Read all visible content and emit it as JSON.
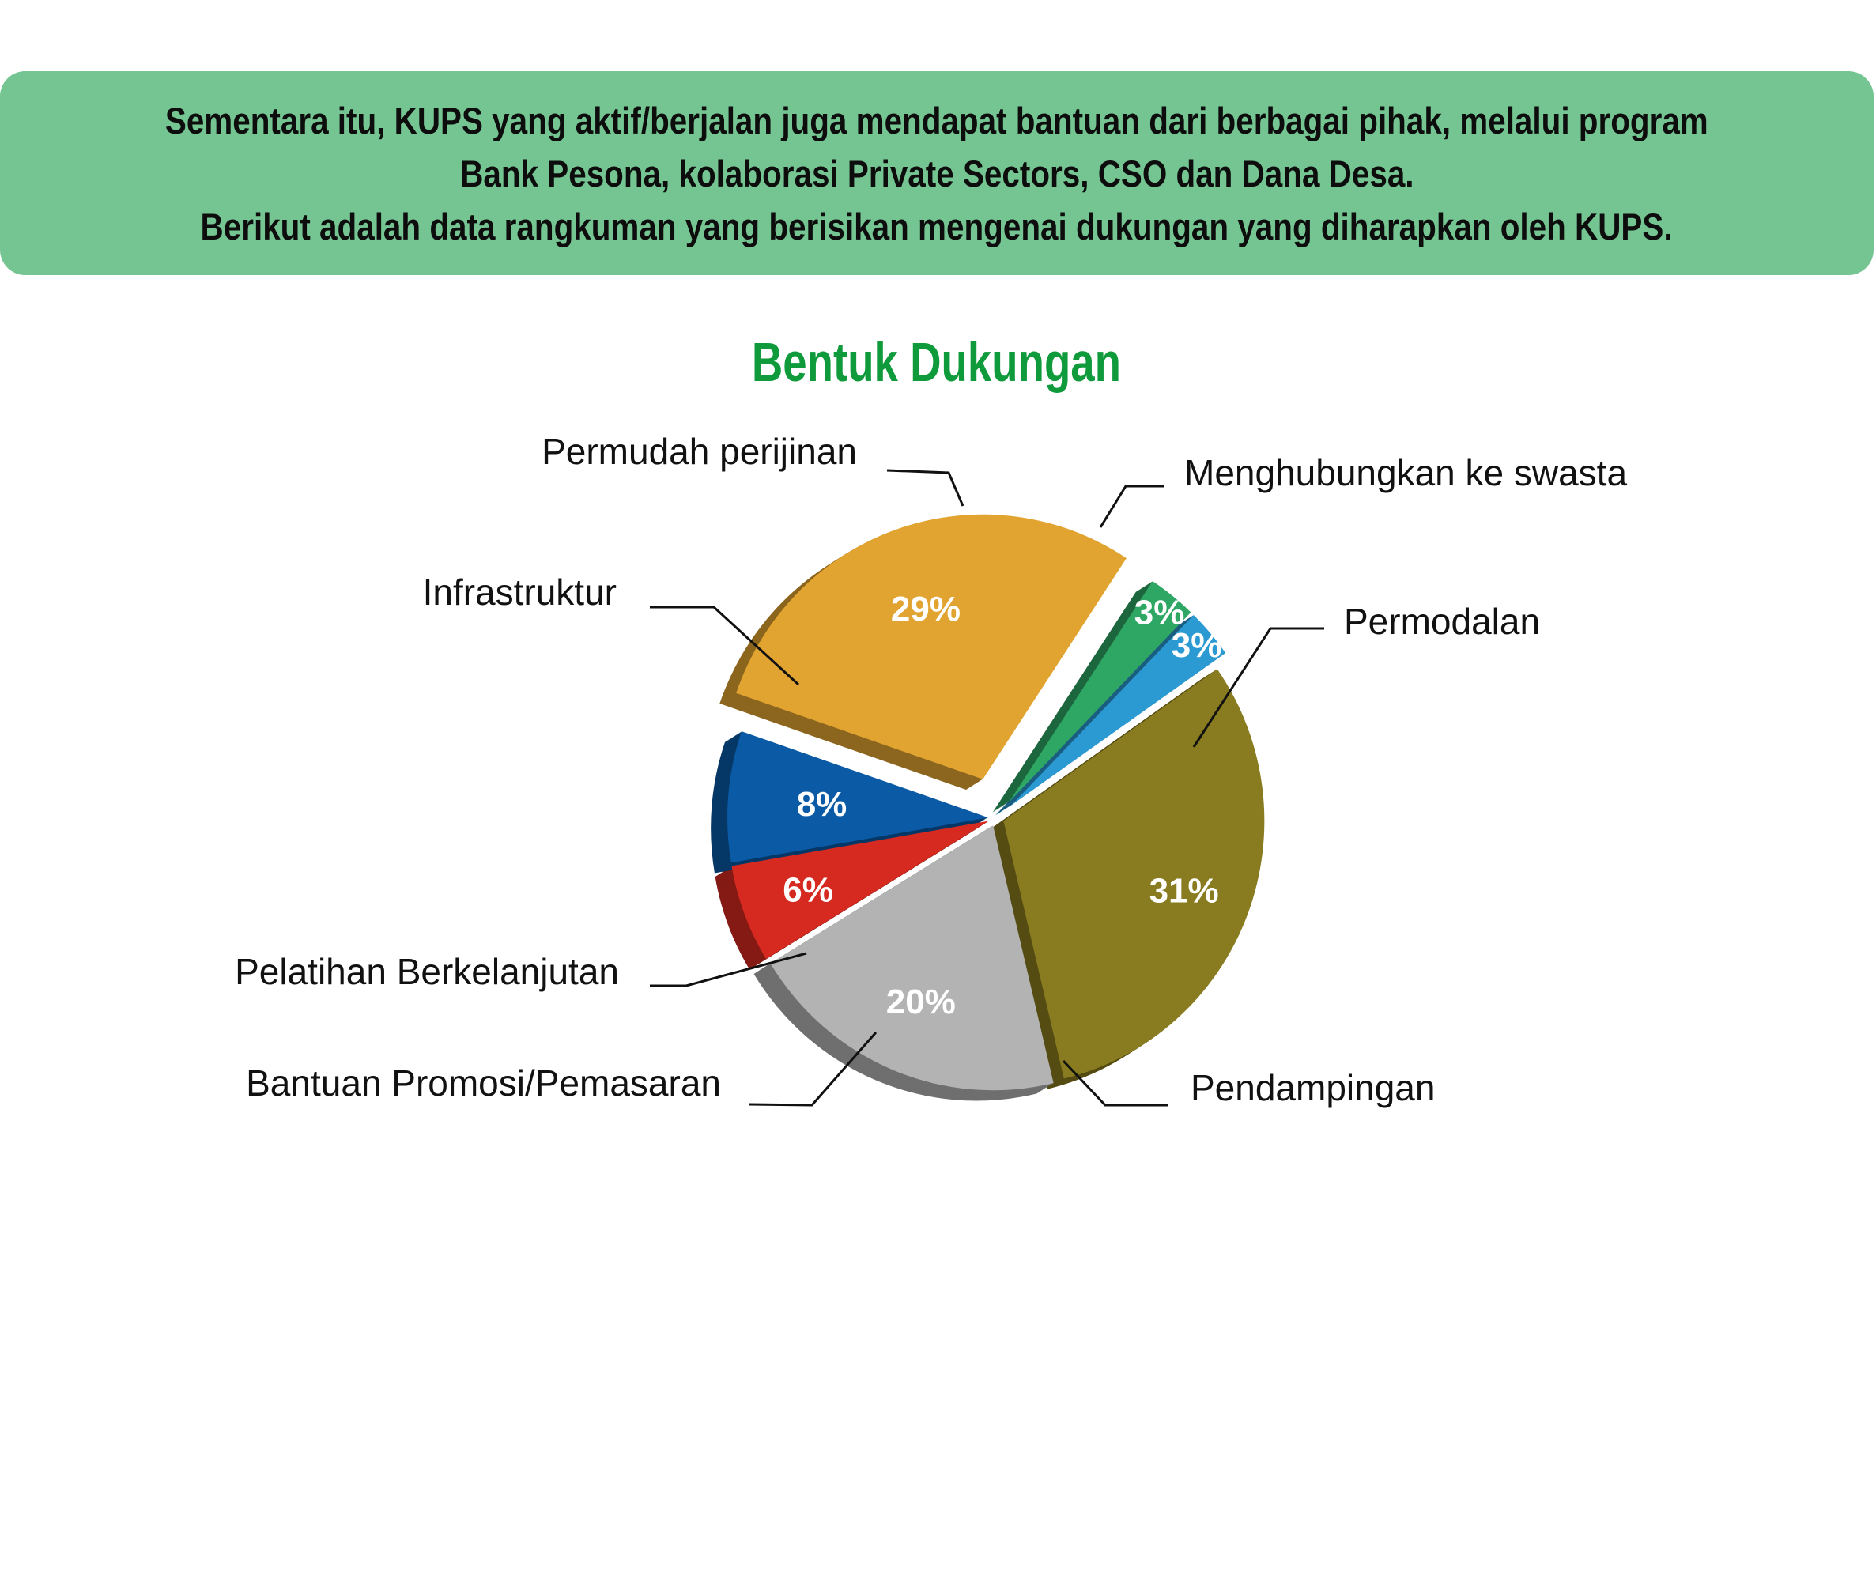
{
  "banner": {
    "line1": "Sementara itu, KUPS yang aktif/berjalan juga mendapat bantuan dari berbagai pihak, melalui program",
    "line2": "Bank Pesona, kolaborasi Private Sectors, CSO dan Dana Desa.",
    "line3": "Berikut adalah data rangkuman yang berisikan mengenai dukungan yang diharapkan oleh KUPS."
  },
  "chart_data": {
    "type": "pie",
    "title": "Bentuk Dukungan",
    "legend": "none",
    "slices": [
      {
        "label": "Permodalan",
        "value": 31,
        "value_label": "31%",
        "color": "#897b1f"
      },
      {
        "label": "Pendampingan",
        "value": 20,
        "value_label": "20%",
        "color": "#b3b3b3"
      },
      {
        "label": "Bantuan Promosi/Pemasaran",
        "value": 6,
        "value_label": "6%",
        "color": "#d62a20"
      },
      {
        "label": "Pelatihan Berkelanjutan",
        "value": 8,
        "value_label": "8%",
        "color": "#0a5aa6"
      },
      {
        "label": "Infrastruktur",
        "value": 29,
        "value_label": "29%",
        "color": "#e2a431"
      },
      {
        "label": "Permudah perijinan",
        "value": 3,
        "value_label": "3%",
        "color": "#2ea664"
      },
      {
        "label": "Menghubungkan ke swasta",
        "value": 3,
        "value_label": "3%",
        "color": "#2b9ad2"
      }
    ]
  }
}
